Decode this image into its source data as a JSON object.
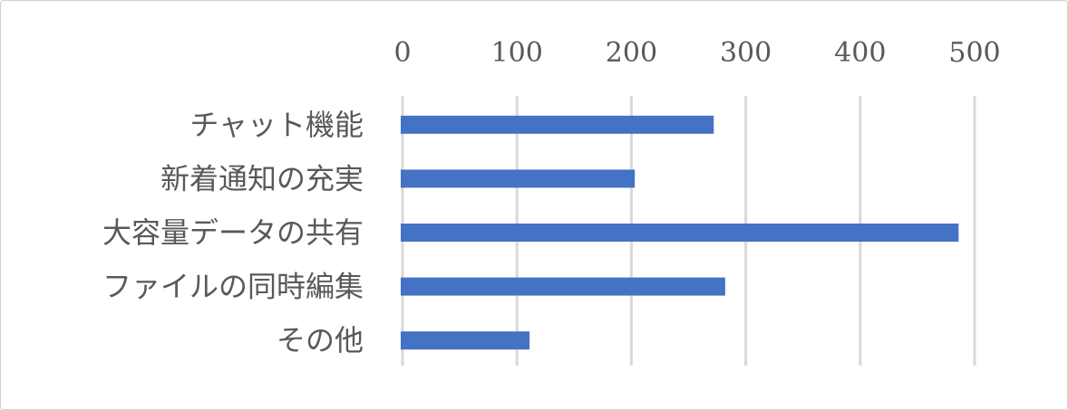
{
  "chart_data": {
    "type": "bar",
    "orientation": "horizontal",
    "categories": [
      "チャット機能",
      "新着通知の充実",
      "大容量データの共有",
      "ファイルの同時編集",
      "その他"
    ],
    "values": [
      272,
      203,
      486,
      282,
      111
    ],
    "xlim": [
      0,
      500
    ],
    "xticks": [
      "0",
      "100",
      "200",
      "300",
      "400",
      "500"
    ],
    "x_axis_position": "top",
    "grid": true,
    "bar_color": "#4472C4",
    "grid_color": "#D9D9D9",
    "title": "",
    "xlabel": "",
    "ylabel": ""
  }
}
